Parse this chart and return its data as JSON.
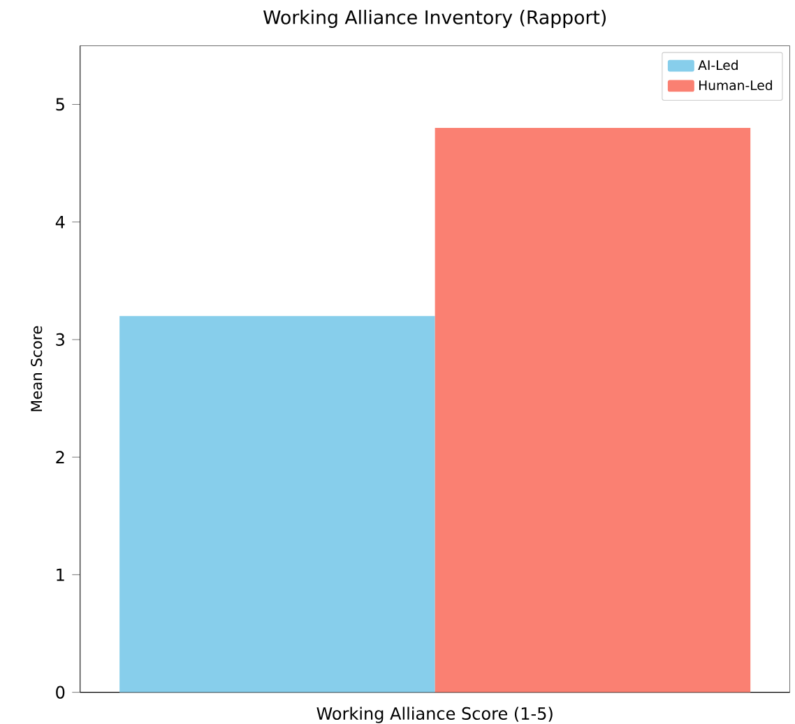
{
  "chart_data": {
    "type": "bar",
    "title": "Working Alliance Inventory (Rapport)",
    "ylabel": "Mean Score",
    "categories": [
      "Working Alliance Score (1-5)"
    ],
    "series": [
      {
        "name": "AI-Led",
        "color": "#87ceeb",
        "values": [
          3.2
        ]
      },
      {
        "name": "Human-Led",
        "color": "#fa8072",
        "values": [
          4.8
        ]
      }
    ],
    "ylim": [
      0,
      5.5
    ],
    "yticks": [
      0,
      1,
      2,
      3,
      4,
      5
    ],
    "grid": false,
    "legend": "top right"
  }
}
